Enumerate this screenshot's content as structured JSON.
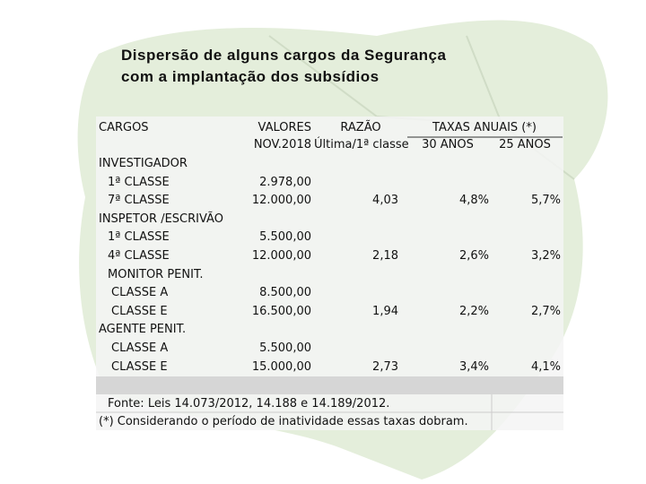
{
  "title": {
    "lines": [
      "Dispersão de alguns cargos da Segurança",
      "com a implantação dos subsídios"
    ]
  },
  "table": {
    "header": {
      "cargos": "CARGOS",
      "valores": [
        "VALORES",
        "NOV.2018"
      ],
      "razao": [
        "RAZÃO",
        "Última/1ª classe"
      ],
      "taxas": "TAXAS ANUAIS (*)",
      "taxa30": "30 ANOS",
      "taxa25": "25  ANOS"
    },
    "rows": [
      {
        "label": "INVESTIGADOR"
      },
      {
        "label": "1ª CLASSE",
        "valor": "2.978,00"
      },
      {
        "label": "7ª CLASSE",
        "valor": "12.000,00",
        "razao": "4,03",
        "taxa30": "4,8%",
        "taxa25": "5,7%"
      },
      {
        "label": "INSPETOR /ESCRIVÃO"
      },
      {
        "label": "1ª CLASSE",
        "valor": "5.500,00"
      },
      {
        "label": "4ª CLASSE",
        "valor": "12.000,00",
        "razao": "2,18",
        "taxa30": "2,6%",
        "taxa25": "3,2%"
      },
      {
        "label": "MONITOR PENIT."
      },
      {
        "label": "CLASSE A",
        "valor": "8.500,00"
      },
      {
        "label": "CLASSE E",
        "valor": "16.500,00",
        "razao": "1,94",
        "taxa30": "2,2%",
        "taxa25": "2,7%"
      },
      {
        "label": "AGENTE PENIT."
      },
      {
        "label": "CLASSE A",
        "valor": "5.500,00"
      },
      {
        "label": "CLASSE E",
        "valor": "15.000,00",
        "razao": "2,73",
        "taxa30": "3,4%",
        "taxa25": "4,1%"
      }
    ],
    "notes": [
      "Fonte: Leis 14.073/2012, 14.188 e 14.189/2012.",
      "(*) Considerando o período de inatividade essas taxas dobram."
    ]
  }
}
